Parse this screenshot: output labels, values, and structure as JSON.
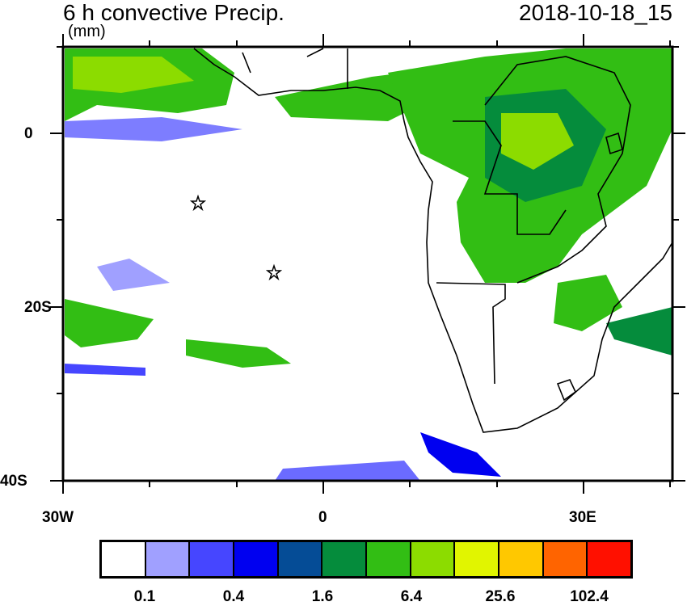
{
  "title": "6 h convective Precip.",
  "units": "(mm)",
  "timestamp": "2018-10-18_15",
  "axes": {
    "x_labels": [
      "30W",
      "0",
      "30E"
    ],
    "y_labels": [
      "0",
      "20S",
      "40S"
    ]
  },
  "markers": [
    {
      "name": "star",
      "lon": -14.5,
      "lat": -8
    },
    {
      "name": "star",
      "lon": -5.7,
      "lat": -16
    }
  ],
  "colorbar": {
    "colors": [
      "#ffffff",
      "#a0a0ff",
      "#4646ff",
      "#0000f0",
      "#054c96",
      "#058c3c",
      "#32be14",
      "#8cdc00",
      "#e1f500",
      "#ffc800",
      "#ff6400",
      "#ff1000"
    ],
    "labels": [
      "0.1",
      "0.4",
      "1.6",
      "6.4",
      "25.6",
      "102.4"
    ]
  }
}
